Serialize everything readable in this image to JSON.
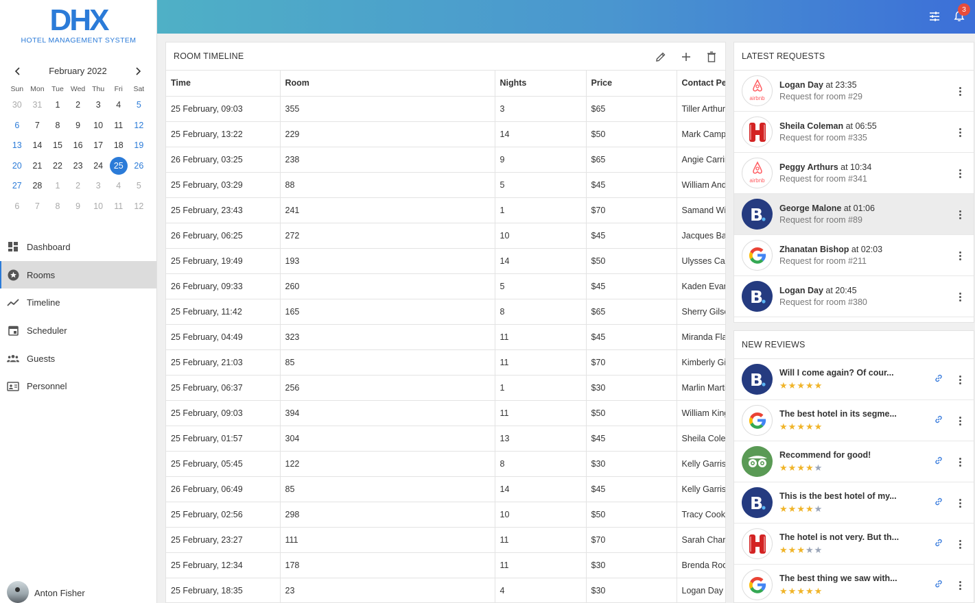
{
  "app": {
    "logo_text": "DHX",
    "subtitle": "HOTEL MANAGEMENT SYSTEM",
    "accent": "#2b7bd8"
  },
  "calendar": {
    "month_label": "February 2022",
    "weekdays": [
      "Sun",
      "Mon",
      "Tue",
      "Wed",
      "Thu",
      "Fri",
      "Sat"
    ],
    "weeks": [
      [
        "30",
        "31",
        "1",
        "2",
        "3",
        "4",
        "5"
      ],
      [
        "6",
        "7",
        "8",
        "9",
        "10",
        "11",
        "12"
      ],
      [
        "13",
        "14",
        "15",
        "16",
        "17",
        "18",
        "19"
      ],
      [
        "20",
        "21",
        "22",
        "23",
        "24",
        "25",
        "26"
      ],
      [
        "27",
        "28",
        "1",
        "2",
        "3",
        "4",
        "5"
      ],
      [
        "6",
        "7",
        "8",
        "9",
        "10",
        "11",
        "12"
      ]
    ],
    "selected_day": "25"
  },
  "nav": {
    "items": [
      {
        "label": "Dashboard",
        "icon": "dashboard-icon"
      },
      {
        "label": "Rooms",
        "icon": "star-circle-icon",
        "active": true
      },
      {
        "label": "Timeline",
        "icon": "trending-icon"
      },
      {
        "label": "Scheduler",
        "icon": "calendar-icon"
      },
      {
        "label": "Guests",
        "icon": "group-icon"
      },
      {
        "label": "Personnel",
        "icon": "id-card-icon"
      }
    ]
  },
  "user": {
    "name": "Anton Fisher"
  },
  "topbar": {
    "notification_count": "3"
  },
  "timeline": {
    "title": "ROOM TIMELINE",
    "columns": [
      "Time",
      "Room",
      "Nights",
      "Price",
      "Contact Person"
    ],
    "rows": [
      [
        "25 February, 09:03",
        "355",
        "3",
        "$65",
        "Tiller Arthur"
      ],
      [
        "25 February, 13:22",
        "229",
        "14",
        "$50",
        "Mark Campbell"
      ],
      [
        "26 February, 03:25",
        "238",
        "9",
        "$65",
        "Angie Carrington"
      ],
      [
        "25 February, 03:29",
        "88",
        "5",
        "$45",
        "William Anderson"
      ],
      [
        "25 February, 23:43",
        "241",
        "1",
        "$70",
        "Samand Williams"
      ],
      [
        "26 February, 06:25",
        "272",
        "10",
        "$45",
        "Jacques Baker"
      ],
      [
        "25 February, 19:49",
        "193",
        "14",
        "$50",
        "Ulysses Carter"
      ],
      [
        "26 February, 09:33",
        "260",
        "5",
        "$45",
        "Kaden Evans"
      ],
      [
        "25 February, 11:42",
        "165",
        "8",
        "$65",
        "Sherry Gilson"
      ],
      [
        "25 February, 04:49",
        "323",
        "11",
        "$45",
        "Miranda Flake"
      ],
      [
        "25 February, 21:03",
        "85",
        "11",
        "$70",
        "Kimberly Gibson"
      ],
      [
        "25 February, 06:37",
        "256",
        "1",
        "$30",
        "Marlin Martin"
      ],
      [
        "25 February, 09:03",
        "394",
        "11",
        "$50",
        "William King"
      ],
      [
        "25 February, 01:57",
        "304",
        "13",
        "$45",
        "Sheila Coleman"
      ],
      [
        "25 February, 05:45",
        "122",
        "8",
        "$30",
        "Kelly Garrison"
      ],
      [
        "26 February, 06:49",
        "85",
        "14",
        "$45",
        "Kelly Garrison"
      ],
      [
        "25 February, 02:56",
        "298",
        "10",
        "$50",
        "Tracy Cook"
      ],
      [
        "25 February, 23:27",
        "111",
        "11",
        "$70",
        "Sarah Chariot"
      ],
      [
        "25 February, 12:34",
        "178",
        "11",
        "$30",
        "Brenda Rodgers"
      ],
      [
        "25 February, 18:35",
        "23",
        "4",
        "$30",
        "Logan Day"
      ]
    ]
  },
  "requests": {
    "title": "LATEST REQUESTS",
    "items": [
      {
        "name": "Logan Day",
        "at": "at 23:35",
        "detail": "Request for room #29",
        "source": "airbnb"
      },
      {
        "name": "Sheila Coleman",
        "at": "at 06:55",
        "detail": "Request for room #335",
        "source": "hotels"
      },
      {
        "name": "Peggy Arthurs",
        "at": "at 10:34",
        "detail": "Request for room #341",
        "source": "airbnb"
      },
      {
        "name": "George Malone",
        "at": "at 01:06",
        "detail": "Request for room #89",
        "source": "booking"
      },
      {
        "name": "Zhanatan Bishop",
        "at": "at 02:03",
        "detail": "Request for room #211",
        "source": "google"
      },
      {
        "name": "Logan Day",
        "at": "at 20:45",
        "detail": "Request for room #380",
        "source": "booking"
      }
    ],
    "airbnb_label": "airbnb"
  },
  "reviews": {
    "title": "NEW REVIEWS",
    "items": [
      {
        "text": "Will I come again? Of cour...",
        "rating": 5,
        "source": "booking"
      },
      {
        "text": "The best hotel in its segme...",
        "rating": 5,
        "source": "google"
      },
      {
        "text": "Recommend for good!",
        "rating": 4,
        "source": "tripadvisor"
      },
      {
        "text": "This is the best hotel of my...",
        "rating": 4,
        "source": "booking"
      },
      {
        "text": "The hotel is not very. But th...",
        "rating": 3,
        "source": "hotels"
      },
      {
        "text": "The best thing we saw with...",
        "rating": 5,
        "source": "google"
      }
    ]
  }
}
